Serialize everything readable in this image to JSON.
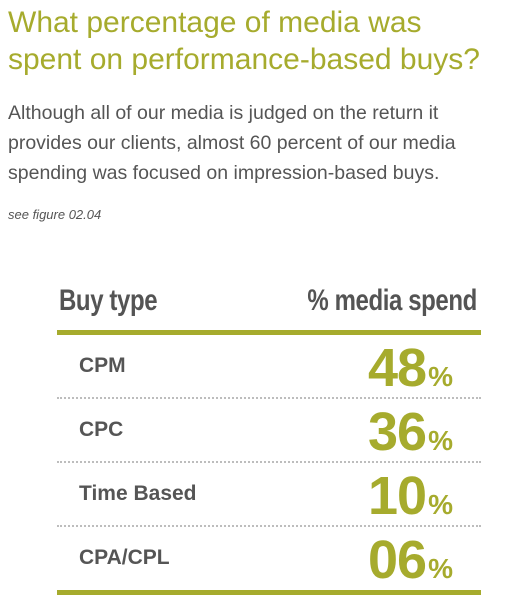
{
  "heading": {
    "line1": "What percentage of media was",
    "line2": "spent on performance-based buys?"
  },
  "body": {
    "line1": "Although all of our media is judged on the return it",
    "line2": "provides our clients, almost 60 percent of our media",
    "line3": "spending was focused on impression-based buys."
  },
  "figure_ref": "see figure 02.04",
  "table": {
    "headers": {
      "col1": "Buy type",
      "col2": "% media spend"
    },
    "rows": [
      {
        "type": "CPM",
        "value": "48",
        "unit": "%"
      },
      {
        "type": "CPC",
        "value": "36",
        "unit": "%"
      },
      {
        "type": "Time Based",
        "value": "10",
        "unit": "%"
      },
      {
        "type": "CPA/CPL",
        "value": "06",
        "unit": "%"
      }
    ]
  },
  "colors": {
    "accent": "#a6ab2d",
    "text": "#555555",
    "divider": "#bdbdbd"
  }
}
